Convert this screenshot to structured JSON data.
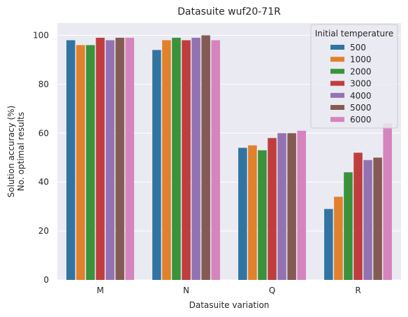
{
  "chart_data": {
    "type": "bar",
    "title": "Datasuite wuf20-71R",
    "xlabel": "Datasuite variation",
    "ylabel_lines": [
      "Solution accuracy (%)",
      "No. optimal results"
    ],
    "categories": [
      "M",
      "N",
      "Q",
      "R"
    ],
    "ylim": [
      0,
      105
    ],
    "yticks": [
      0,
      20,
      40,
      60,
      80,
      100
    ],
    "grid": true,
    "legend": {
      "title": "Initial temperature",
      "placement": "top-right"
    },
    "series": [
      {
        "name": "500",
        "color": "#3274a1",
        "values": [
          98,
          94,
          54,
          29
        ]
      },
      {
        "name": "1000",
        "color": "#e1812c",
        "values": [
          96,
          98,
          55,
          34
        ]
      },
      {
        "name": "2000",
        "color": "#3a923a",
        "values": [
          96,
          99,
          53,
          44
        ]
      },
      {
        "name": "3000",
        "color": "#c03d3e",
        "values": [
          99,
          98,
          58,
          52
        ]
      },
      {
        "name": "4000",
        "color": "#9372b2",
        "values": [
          98,
          99,
          60,
          49
        ]
      },
      {
        "name": "5000",
        "color": "#845b53",
        "values": [
          99,
          100,
          60,
          50
        ]
      },
      {
        "name": "6000",
        "color": "#d684bd",
        "values": [
          99,
          98,
          61,
          64
        ]
      }
    ]
  },
  "colors": {
    "plot_background": "#eaeaf2",
    "grid": "#ffffff",
    "text": "#262626"
  }
}
